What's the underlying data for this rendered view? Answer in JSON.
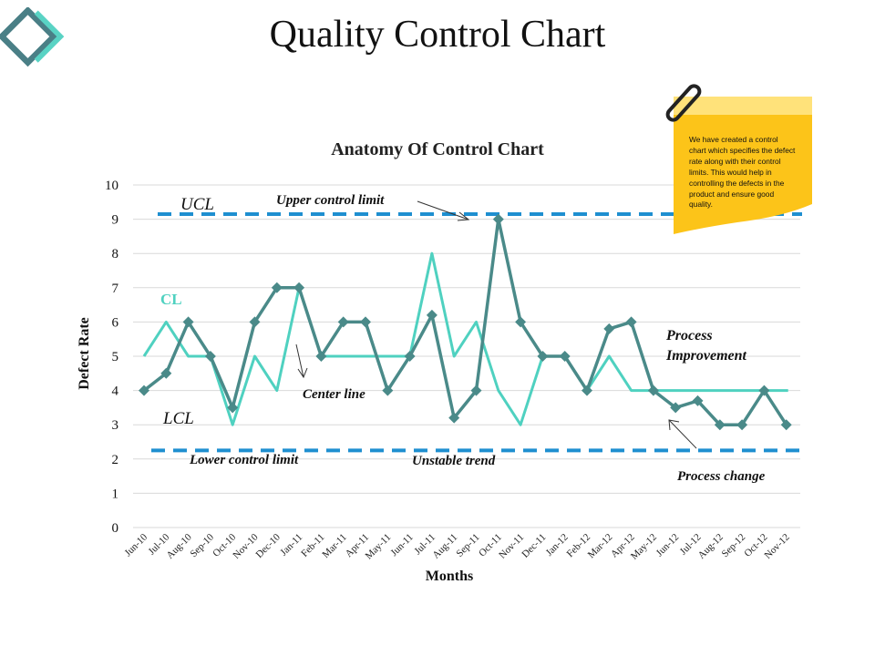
{
  "page": {
    "title": "Quality Control Chart"
  },
  "note": {
    "text": "We have created a control chart which specifies the defect rate along with their control limits. This would help in controlling the defects in the product and ensure good quality."
  },
  "colors": {
    "actual": "#4a8a89",
    "center": "#4fd1c0",
    "limits": "#1e8fd0",
    "note": "#fcc419",
    "note_top": "#ffe27a",
    "cl_label": "#4fd1c0"
  },
  "chart_data": {
    "type": "line",
    "title": "Anatomy Of Control Chart",
    "xlabel": "Months",
    "ylabel": "Defect Rate",
    "ylim": [
      0,
      10
    ],
    "yticks": [
      "0",
      "1",
      "2",
      "3",
      "4",
      "5",
      "6",
      "7",
      "8",
      "9",
      "10"
    ],
    "grid": true,
    "categories": [
      "Jun-10",
      "Jul-10",
      "Aug-10",
      "Sep-10",
      "Oct-10",
      "Nov-10",
      "Dec-10",
      "Jan-11",
      "Feb-11",
      "Mar-11",
      "Apr-11",
      "May-11",
      "Jun-11",
      "Jul-11",
      "Aug-11",
      "Sep-11",
      "Oct-11",
      "Nov-11",
      "Dec-11",
      "Jan-12",
      "Feb-12",
      "Mar-12",
      "Apr-12",
      "May-12",
      "Jun-12",
      "Jul-12",
      "Aug-12",
      "Sep-12",
      "Oct-12",
      "Nov-12"
    ],
    "series": [
      {
        "name": "Defect Rate",
        "values": [
          4,
          4.5,
          6,
          5,
          3.5,
          6,
          7,
          7,
          5,
          6,
          6,
          4,
          5,
          6.2,
          3.2,
          4,
          9,
          6,
          5,
          5,
          4,
          5.8,
          6,
          4,
          3.5,
          3.7,
          3,
          3,
          4,
          3
        ]
      },
      {
        "name": "Center Line",
        "values": [
          5,
          6,
          5,
          5,
          3,
          5,
          4,
          7,
          5,
          5,
          5,
          5,
          5,
          8,
          5,
          6,
          4,
          3,
          5,
          5,
          4,
          5,
          4,
          4,
          4,
          4,
          4,
          4,
          4,
          4
        ]
      }
    ],
    "control_limits": {
      "ucl": 9.15,
      "lcl": 2.25,
      "ucl_label": "UCL",
      "lcl_label": "LCL",
      "cl_label": "CL"
    },
    "annotations": {
      "upper_limit": "Upper control limit",
      "lower_limit": "Lower control limit",
      "center_line": "Center line",
      "unstable_trend": "Unstable trend",
      "process_improvement_1": "Process",
      "process_improvement_2": "Improvement",
      "process_change": "Process change"
    }
  }
}
